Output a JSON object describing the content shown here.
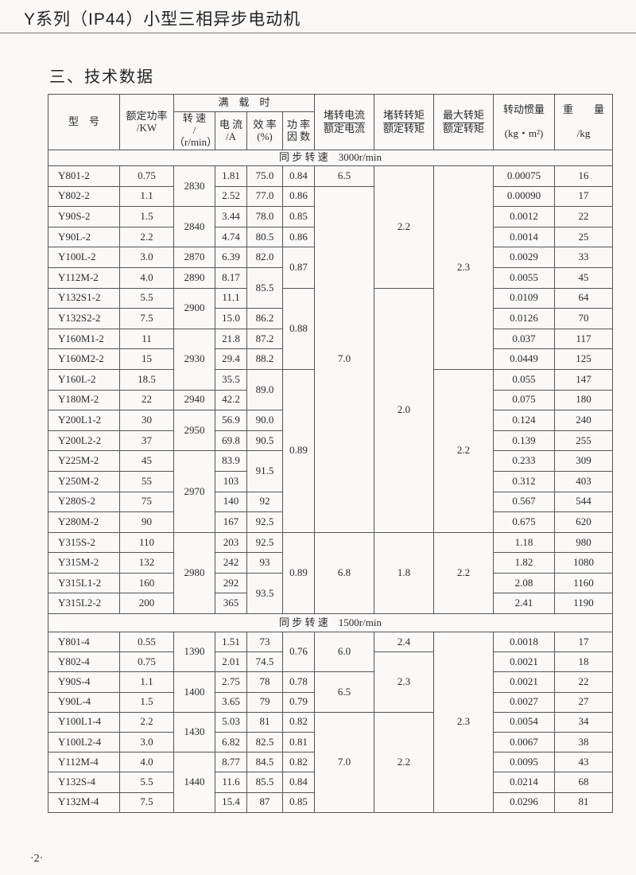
{
  "header": {
    "title": "Y系列（IP44）小型三相异步电动机"
  },
  "section_heading": "三、技术数据",
  "table": {
    "headers": {
      "model": "型　号",
      "power": [
        "额定功率",
        "/KW"
      ],
      "full_load": "满　载　时",
      "speed": [
        "转 速",
        "/（r/min）"
      ],
      "current": [
        "电 流",
        "/A"
      ],
      "efficiency": [
        "效 率",
        "(%)"
      ],
      "power_factor": [
        "功 率",
        "因 数"
      ],
      "locked_current_ratio": [
        "堵转电流",
        "额定电流"
      ],
      "locked_torque_ratio": [
        "堵转转矩",
        "额定转矩"
      ],
      "max_torque_ratio": [
        "最大转矩",
        "额定转矩"
      ],
      "inertia": [
        "转动惯量",
        "(kg・m²)"
      ],
      "weight": [
        "重　　量",
        "/kg"
      ]
    },
    "sections": [
      {
        "label": "同 步 转 速　3000r/min",
        "columns": {
          "model": [
            "Y801-2",
            "Y802-2",
            "Y90S-2",
            "Y90L-2",
            "Y100L-2",
            "Y112M-2",
            "Y132S1-2",
            "Y132S2-2",
            "Y160M1-2",
            "Y160M2-2",
            "Y160L-2",
            "Y180M-2",
            "Y200L1-2",
            "Y200L2-2",
            "Y225M-2",
            "Y250M-2",
            "Y280S-2",
            "Y280M-2",
            "Y315S-2",
            "Y315M-2",
            "Y315L1-2",
            "Y315L2-2"
          ],
          "power": [
            "0.75",
            "1.1",
            "1.5",
            "2.2",
            "3.0",
            "4.0",
            "5.5",
            "7.5",
            "11",
            "15",
            "18.5",
            "22",
            "30",
            "37",
            "45",
            "55",
            "75",
            "90",
            "110",
            "132",
            "160",
            "200"
          ],
          "speed": [
            {
              "v": "2830",
              "rows": 2
            },
            {
              "v": "2840",
              "rows": 2
            },
            "2870",
            "2890",
            {
              "v": "2900",
              "rows": 2
            },
            {
              "v": "2930",
              "rows": 3
            },
            "2940",
            {
              "v": "2950",
              "rows": 2
            },
            {
              "v": "2970",
              "rows": 4
            },
            {
              "v": "2980",
              "rows": 4
            }
          ],
          "current": [
            "1.81",
            "2.52",
            "3.44",
            "4.74",
            "6.39",
            "8.17",
            "11.1",
            "15.0",
            "21.8",
            "29.4",
            "35.5",
            "42.2",
            "56.9",
            "69.8",
            "83.9",
            "103",
            "140",
            "167",
            "203",
            "242",
            "292",
            "365"
          ],
          "efficiency": [
            "75.0",
            "77.0",
            "78.0",
            "80.5",
            "82.0",
            {
              "v": "85.5",
              "rows": 2
            },
            "86.2",
            "87.2",
            "88.2",
            {
              "v": "89.0",
              "rows": 2
            },
            "90.0",
            "90.5",
            {
              "v": "91.5",
              "rows": 2
            },
            "92",
            "92.5",
            "92.5",
            "93",
            {
              "v": "93.5",
              "rows": 2
            }
          ],
          "power_factor": [
            "0.84",
            "0.86",
            "0.85",
            "0.86",
            {
              "v": "0.87",
              "rows": 2
            },
            {
              "v": "0.88",
              "rows": 4
            },
            {
              "v": "0.89",
              "rows": 8
            },
            {
              "v": "0.89",
              "rows": 4
            }
          ],
          "locked_current_ratio": [
            "6.5",
            {
              "v": "7.0",
              "rows": 17
            },
            {
              "v": "6.8",
              "rows": 4
            }
          ],
          "locked_torque_ratio": [
            {
              "v": "2.2",
              "rows": 6
            },
            {
              "v": "2.0",
              "rows": 12
            },
            {
              "v": "1.8",
              "rows": 4
            }
          ],
          "max_torque_ratio": [
            {
              "v": "2.3",
              "rows": 10
            },
            {
              "v": "2.2",
              "rows": 8
            },
            {
              "v": "2.2",
              "rows": 4
            }
          ],
          "inertia": [
            "0.00075",
            "0.00090",
            "0.0012",
            "0.0014",
            "0.0029",
            "0.0055",
            "0.0109",
            "0.0126",
            "0.037",
            "0.0449",
            "0.055",
            "0.075",
            "0.124",
            "0.139",
            "0.233",
            "0.312",
            "0.567",
            "0.675",
            "1.18",
            "1.82",
            "2.08",
            "2.41"
          ],
          "weight": [
            "16",
            "17",
            "22",
            "25",
            "33",
            "45",
            "64",
            "70",
            "117",
            "125",
            "147",
            "180",
            "240",
            "255",
            "309",
            "403",
            "544",
            "620",
            "980",
            "1080",
            "1160",
            "1190"
          ]
        }
      },
      {
        "label": "同 步 转 速　1500r/min",
        "columns": {
          "model": [
            "Y801-4",
            "Y802-4",
            "Y90S-4",
            "Y90L-4",
            "Y100L1-4",
            "Y100L2-4",
            "Y112M-4",
            "Y132S-4",
            "Y132M-4"
          ],
          "power": [
            "0.55",
            "0.75",
            "1.1",
            "1.5",
            "2.2",
            "3.0",
            "4.0",
            "5.5",
            "7.5"
          ],
          "speed": [
            {
              "v": "1390",
              "rows": 2
            },
            {
              "v": "1400",
              "rows": 2
            },
            {
              "v": "1430",
              "rows": 2
            },
            {
              "v": "1440",
              "rows": 3
            }
          ],
          "current": [
            "1.51",
            "2.01",
            "2.75",
            "3.65",
            "5.03",
            "6.82",
            "8.77",
            "11.6",
            "15.4"
          ],
          "efficiency": [
            "73",
            "74.5",
            "78",
            "79",
            "81",
            "82.5",
            "84.5",
            "85.5",
            "87"
          ],
          "power_factor": [
            {
              "v": "0.76",
              "rows": 2
            },
            "0.78",
            "0.79",
            "0.82",
            "0.81",
            "0.82",
            "0.84",
            "0.85"
          ],
          "locked_current_ratio": [
            {
              "v": "6.0",
              "rows": 2
            },
            {
              "v": "6.5",
              "rows": 2
            },
            {
              "v": "7.0",
              "rows": 5
            }
          ],
          "locked_torque_ratio": [
            "2.4",
            {
              "v": "2.3",
              "rows": 3
            },
            {
              "v": "2.2",
              "rows": 5
            }
          ],
          "max_torque_ratio": [
            {
              "v": "2.3",
              "rows": 9
            }
          ],
          "inertia": [
            "0.0018",
            "0.0021",
            "0.0021",
            "0.0027",
            "0.0054",
            "0.0067",
            "0.0095",
            "0.0214",
            "0.0296"
          ],
          "weight": [
            "17",
            "18",
            "22",
            "27",
            "34",
            "38",
            "43",
            "68",
            "81"
          ]
        }
      }
    ]
  },
  "page_number": "·2·"
}
